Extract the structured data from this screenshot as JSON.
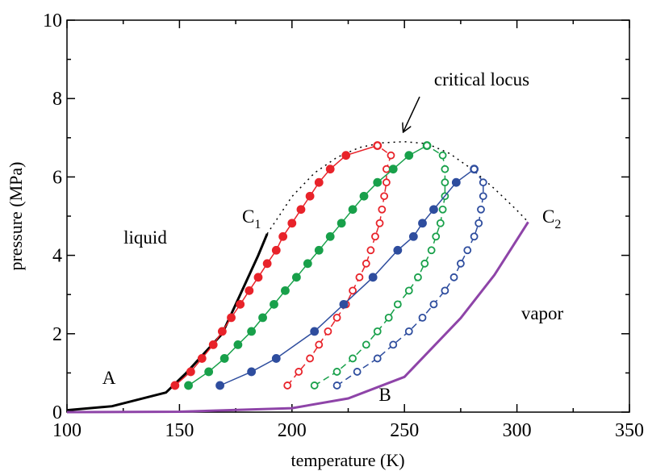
{
  "chart_data": {
    "type": "line",
    "xlabel": "temperature (K)",
    "ylabel": "pressure (MPa)",
    "xlim": [
      100,
      350
    ],
    "xticks": [
      100,
      150,
      200,
      250,
      300,
      350
    ],
    "ylim": [
      0,
      10
    ],
    "yticks": [
      0,
      2,
      4,
      6,
      8,
      10
    ],
    "series": [
      {
        "color": "#000000",
        "width": 3,
        "marker": "none",
        "dash": "none",
        "x": [
          100,
          120,
          144,
          153,
          169,
          177,
          185,
          189
        ],
        "values": [
          0.05,
          0.15,
          0.5,
          1,
          2,
          3,
          4,
          4.55
        ]
      },
      {
        "color": "#8e44a8",
        "width": 3,
        "marker": "none",
        "dash": "none",
        "x": [
          100,
          150,
          200,
          225,
          250,
          275,
          290,
          300,
          305
        ],
        "values": [
          0,
          0.01,
          0.1,
          0.35,
          0.9,
          2.4,
          3.5,
          4.4,
          4.85
        ]
      },
      {
        "color": "#000000",
        "width": 1.5,
        "marker": "none",
        "dash": "dotted",
        "x": [
          189,
          200,
          210,
          220,
          230,
          240,
          250,
          260,
          270,
          280,
          290,
          300,
          305
        ],
        "values": [
          4.55,
          5.5,
          6.1,
          6.5,
          6.75,
          6.87,
          6.9,
          6.85,
          6.6,
          6.2,
          5.7,
          5.15,
          4.85
        ]
      },
      {
        "color": "#e8232a",
        "width": 1.5,
        "marker": "filled",
        "dash": "none",
        "x": [
          148,
          155,
          160,
          165,
          169,
          173,
          177,
          181,
          185,
          189,
          193,
          196,
          200,
          204,
          208,
          212,
          217,
          224,
          238
        ],
        "values": [
          0.68,
          1.03,
          1.37,
          1.72,
          2.06,
          2.41,
          2.75,
          3.1,
          3.44,
          3.79,
          4.13,
          4.48,
          4.82,
          5.17,
          5.51,
          5.86,
          6.2,
          6.55,
          6.8
        ]
      },
      {
        "color": "#e8232a",
        "width": 1.5,
        "marker": "open",
        "dash": "dashed",
        "x": [
          198,
          203,
          208,
          212,
          216,
          220,
          224,
          227,
          230,
          233,
          235,
          237,
          239,
          240,
          241,
          242,
          242,
          244,
          238
        ],
        "values": [
          0.68,
          1.03,
          1.37,
          1.72,
          2.06,
          2.41,
          2.75,
          3.1,
          3.44,
          3.79,
          4.13,
          4.48,
          4.82,
          5.17,
          5.51,
          5.86,
          6.2,
          6.55,
          6.8
        ]
      },
      {
        "color": "#18a04a",
        "width": 1.5,
        "marker": "filled",
        "dash": "none",
        "x": [
          154,
          163,
          170,
          176,
          182,
          187,
          192,
          197,
          202,
          207,
          212,
          217,
          222,
          227,
          232,
          238,
          245,
          252,
          260
        ],
        "values": [
          0.68,
          1.03,
          1.37,
          1.72,
          2.06,
          2.41,
          2.75,
          3.1,
          3.44,
          3.79,
          4.13,
          4.48,
          4.82,
          5.17,
          5.51,
          5.86,
          6.2,
          6.55,
          6.8
        ]
      },
      {
        "color": "#18a04a",
        "width": 1.5,
        "marker": "open",
        "dash": "dashed",
        "x": [
          210,
          220,
          227,
          233,
          238,
          243,
          247,
          252,
          256,
          259,
          262,
          264,
          266,
          267,
          268,
          268,
          268,
          267,
          260
        ],
        "values": [
          0.68,
          1.03,
          1.37,
          1.72,
          2.06,
          2.41,
          2.75,
          3.1,
          3.44,
          3.79,
          4.13,
          4.48,
          4.82,
          5.17,
          5.51,
          5.86,
          6.2,
          6.55,
          6.8
        ]
      },
      {
        "color": "#2e4d9e",
        "width": 1.5,
        "marker": "filled",
        "dash": "none",
        "x": [
          168,
          182,
          193,
          210,
          223,
          236,
          247,
          254,
          258,
          263,
          273,
          281
        ],
        "values": [
          0.68,
          1.03,
          1.37,
          2.06,
          2.75,
          3.44,
          4.13,
          4.48,
          4.82,
          5.17,
          5.86,
          6.2
        ]
      },
      {
        "color": "#2e4d9e",
        "width": 1.5,
        "marker": "open",
        "dash": "dashed",
        "x": [
          220,
          229,
          238,
          245,
          252,
          258,
          263,
          268,
          272,
          275,
          278,
          281,
          283,
          284,
          285,
          285,
          281
        ],
        "values": [
          0.68,
          1.03,
          1.37,
          1.72,
          2.06,
          2.41,
          2.75,
          3.1,
          3.44,
          3.79,
          4.13,
          4.48,
          4.82,
          5.17,
          5.51,
          5.86,
          6.2
        ]
      }
    ],
    "annotations": [
      {
        "text": "critical locus"
      },
      {
        "text": "liquid"
      },
      {
        "text": "vapor"
      },
      {
        "text": "A"
      },
      {
        "text": "B"
      },
      {
        "text": "C",
        "sub": "1"
      },
      {
        "text": "C",
        "sub": "2"
      }
    ]
  }
}
